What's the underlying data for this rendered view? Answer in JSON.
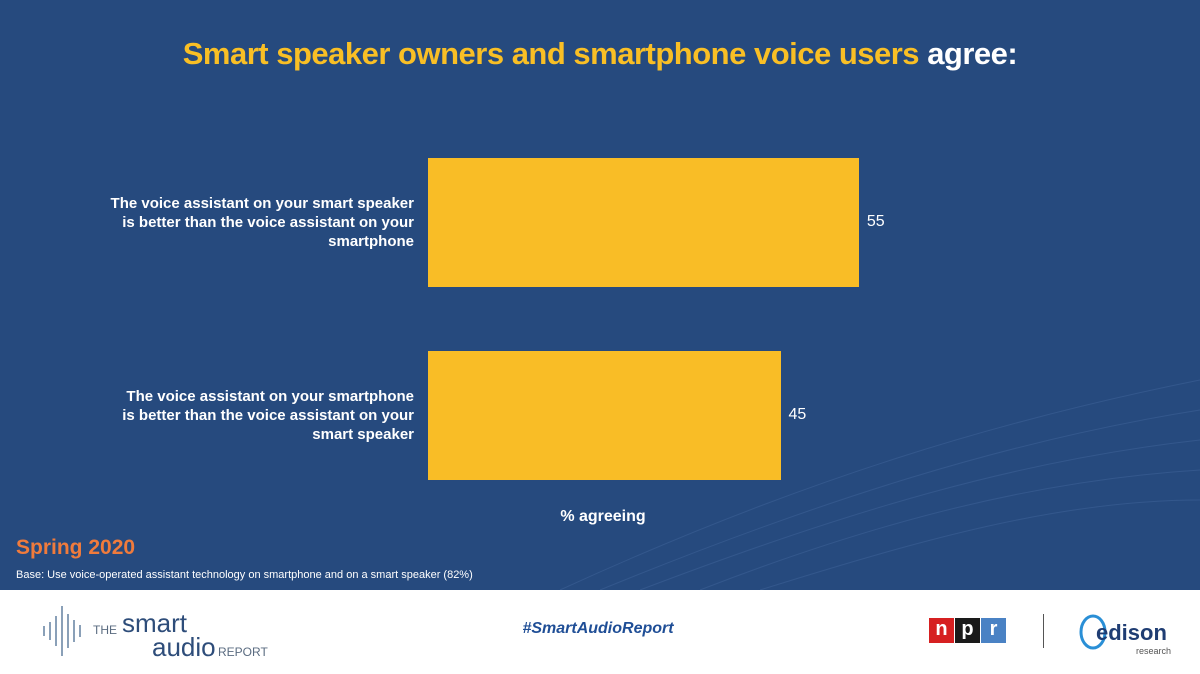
{
  "chart_data": {
    "type": "bar",
    "orientation": "horizontal",
    "title": "Smart speaker owners and smartphone voice users",
    "title_emphasis": "agree:",
    "categories": [
      "The voice assistant on your smart speaker is better than the voice assistant on your smartphone",
      "The voice assistant on your smartphone is better than the voice assistant on your smart speaker"
    ],
    "values": [
      55,
      45
    ],
    "color": "#f9bd26",
    "xlim": [
      0,
      60
    ],
    "xlabel": "% agreeing",
    "period": "Spring 2020",
    "base_note": "Base: Use voice-operated assistant technology on smartphone and on a smart speaker (82%)"
  },
  "footer": {
    "hashtag": "#SmartAudioReport",
    "logo_the": "THE",
    "logo_smart": "smart",
    "logo_audio": "audio",
    "logo_report": "REPORT",
    "npr": [
      "n",
      "p",
      "r"
    ],
    "edison": "edison",
    "edison_sub": "research"
  }
}
